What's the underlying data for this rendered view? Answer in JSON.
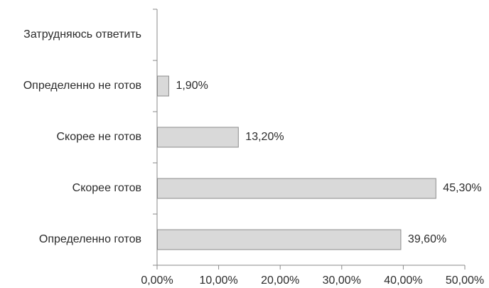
{
  "chart_data": {
    "type": "bar",
    "orientation": "horizontal",
    "title": "",
    "xlabel": "",
    "ylabel": "",
    "categories": [
      "Затрудняюсь ответить",
      "Определенно не готов",
      "Скорее не готов",
      "Скорее готов",
      "Определенно готов"
    ],
    "values": [
      null,
      1.9,
      13.2,
      45.3,
      39.6
    ],
    "value_labels": [
      "",
      "1,90%",
      "13,20%",
      "45,30%",
      "39,60%"
    ],
    "xlim": [
      0,
      50
    ],
    "x_ticks": [
      0,
      10,
      20,
      30,
      40,
      50
    ],
    "x_tick_labels": [
      "0,00%",
      "10,00%",
      "20,00%",
      "30,00%",
      "40,00%",
      "50,00%"
    ],
    "grid": false,
    "legend": "none",
    "colors": {
      "bar_fill": "#d9d9d9",
      "bar_stroke": "#8c8c8c",
      "axis": "#8a8a8a",
      "text": "#2b2b2b"
    }
  }
}
